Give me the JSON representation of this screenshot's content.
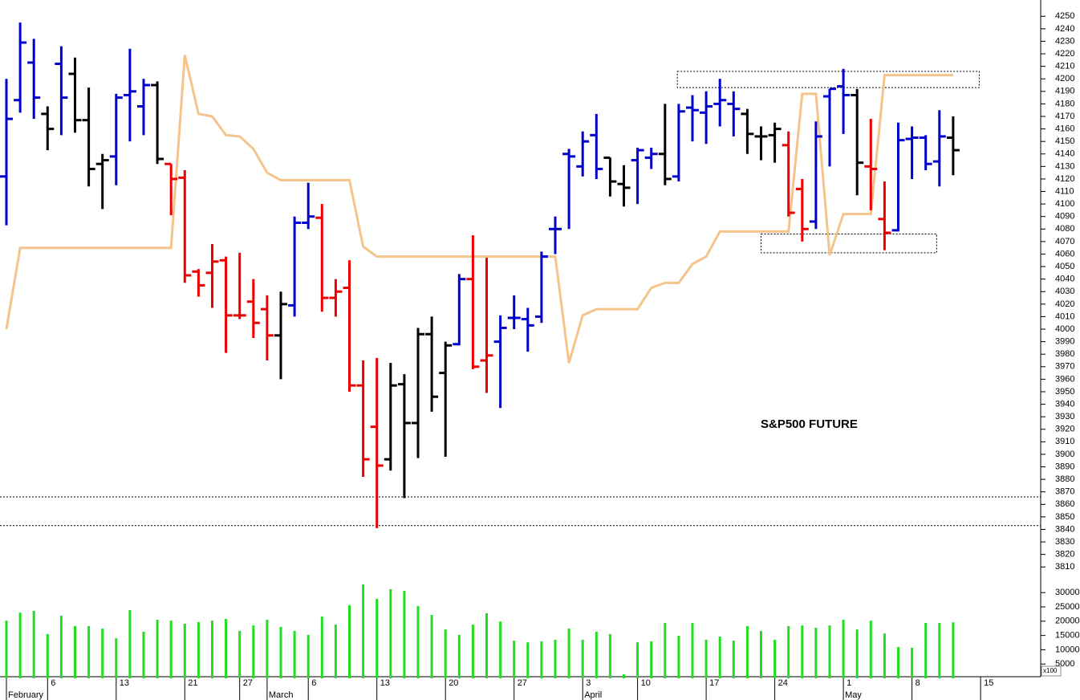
{
  "chart_data": {
    "type": "ohlc",
    "annotation": "S&P500 FUTURE",
    "categories": [
      null,
      null,
      null,
      "6",
      null,
      null,
      null,
      null,
      "13",
      null,
      null,
      null,
      null,
      "21",
      null,
      null,
      null,
      "27",
      null,
      null,
      null,
      null,
      "6",
      null,
      null,
      null,
      null,
      "13",
      null,
      null,
      null,
      null,
      "20",
      null,
      null,
      null,
      null,
      "27",
      null,
      null,
      null,
      null,
      "3",
      null,
      null,
      null,
      "10",
      null,
      null,
      null,
      null,
      "17",
      null,
      null,
      null,
      null,
      "24",
      null,
      null,
      null,
      null,
      "1",
      null,
      null,
      null,
      null,
      "8",
      null,
      null,
      null,
      null,
      "15"
    ],
    "months": [
      "February",
      null,
      null,
      null,
      null,
      null,
      null,
      null,
      null,
      null,
      null,
      null,
      null,
      null,
      null,
      null,
      null,
      null,
      null,
      "March",
      null,
      null,
      null,
      null,
      null,
      null,
      null,
      null,
      null,
      null,
      null,
      null,
      null,
      null,
      null,
      null,
      null,
      null,
      null,
      null,
      null,
      null,
      "April",
      null,
      null,
      null,
      null,
      null,
      null,
      null,
      null,
      null,
      null,
      null,
      null,
      null,
      null,
      null,
      null,
      null,
      null,
      "May",
      null,
      null,
      null,
      null,
      null,
      null,
      null,
      null,
      null,
      null
    ],
    "open": [
      4122,
      4183,
      4213,
      4172,
      4212,
      4204,
      4167,
      4132,
      4138,
      4187,
      4178,
      4195,
      4132,
      4121,
      4046,
      4045,
      4055,
      4011,
      4022,
      4016,
      3995,
      4019,
      4085,
      4089,
      4025,
      4033,
      3955,
      3922,
      3896,
      3956,
      3925,
      3996,
      3965,
      3988,
      4040,
      3975,
      3990,
      4009,
      4008,
      4010,
      4080,
      4140,
      4130,
      4155,
      4137,
      4116,
      4135,
      4137,
      4140,
      4122,
      4177,
      4173,
      4180,
      4180,
      4172,
      4154,
      4155,
      4147,
      4112,
      4086,
      4186,
      4194,
      4187,
      4130,
      4088,
      4079,
      4152,
      4153,
      4134,
      4153,
      null,
      null
    ],
    "high": [
      4200,
      4245,
      4232,
      4178,
      4226,
      4217,
      4193,
      4140,
      4188,
      4224,
      4200,
      4198,
      4132,
      4127,
      4048,
      4068,
      4058,
      4061,
      4040,
      4027,
      4030,
      4090,
      4117,
      4100,
      4040,
      4055,
      3975,
      3977,
      3973,
      3964,
      4001,
      4010,
      3990,
      4044,
      4075,
      4057,
      4011,
      4027,
      4017,
      4062,
      4090,
      4144,
      4158,
      4172,
      4137,
      4131,
      4145,
      4145,
      4180,
      4180,
      4187,
      4190,
      4200,
      4190,
      4176,
      4162,
      4165,
      4158,
      4120,
      4166,
      4192,
      4208,
      4192,
      4168,
      4118,
      4165,
      4162,
      4155,
      4175,
      4170,
      null,
      null
    ],
    "low": [
      4083,
      4173,
      4168,
      4143,
      4155,
      4157,
      4114,
      4096,
      4115,
      4150,
      4155,
      4132,
      4091,
      4037,
      4026,
      4017,
      3981,
      4008,
      3993,
      3975,
      3960,
      4010,
      4080,
      4014,
      4010,
      3950,
      3882,
      3841,
      3887,
      3865,
      3897,
      3934,
      3898,
      3987,
      3968,
      3949,
      3937,
      4000,
      3982,
      4005,
      4060,
      4080,
      4122,
      4120,
      4106,
      4098,
      4100,
      4128,
      4115,
      4118,
      4150,
      4148,
      4162,
      4154,
      4140,
      4135,
      4133,
      4090,
      4070,
      4080,
      4130,
      4156,
      4107,
      4095,
      4063,
      4078,
      4120,
      4127,
      4114,
      4123,
      null,
      null
    ],
    "close": [
      4168,
      4229,
      4185,
      4160,
      4185,
      4167,
      4128,
      4135,
      4185,
      4190,
      4195,
      4136,
      4120,
      4043,
      4035,
      4054,
      4011,
      4011,
      4005,
      3995,
      4020,
      4085,
      4090,
      4025,
      4030,
      3955,
      3896,
      3891,
      3955,
      3925,
      3996,
      3946,
      3987,
      4040,
      3970,
      3979,
      4001,
      4009,
      4003,
      4058,
      4080,
      4138,
      4150,
      4128,
      4118,
      4113,
      4143,
      4140,
      4120,
      4174,
      4175,
      4178,
      4183,
      4176,
      4156,
      4154,
      4160,
      4093,
      4080,
      4154,
      4192,
      4187,
      4133,
      4128,
      4077,
      4151,
      4153,
      4132,
      4154,
      4143,
      null,
      null
    ],
    "colors": [
      "#0000cc",
      "#0000cc",
      "#0000cc",
      "#000000",
      "#0000cc",
      "#000000",
      "#000000",
      "#000000",
      "#0000cc",
      "#0000cc",
      "#0000cc",
      "#000000",
      "#ee0000",
      "#ee0000",
      "#ee0000",
      "#ee0000",
      "#ee0000",
      "#ee0000",
      "#ee0000",
      "#ee0000",
      "#000000",
      "#0000cc",
      "#0000cc",
      "#ee0000",
      "#ee0000",
      "#ee0000",
      "#ee0000",
      "#ee0000",
      "#000000",
      "#000000",
      "#000000",
      "#000000",
      "#000000",
      "#0000cc",
      "#ee0000",
      "#ee0000",
      "#0000cc",
      "#0000cc",
      "#0000cc",
      "#0000cc",
      "#0000cc",
      "#0000cc",
      "#0000cc",
      "#0000cc",
      "#000000",
      "#000000",
      "#0000cc",
      "#0000cc",
      "#000000",
      "#0000cc",
      "#0000cc",
      "#0000cc",
      "#0000cc",
      "#0000cc",
      "#000000",
      "#000000",
      "#000000",
      "#ee0000",
      "#ee0000",
      "#0000cc",
      "#0000cc",
      "#0000cc",
      "#000000",
      "#ee0000",
      "#ee0000",
      "#0000cc",
      "#0000cc",
      "#0000cc",
      "#0000cc",
      "#000000",
      null,
      null
    ],
    "indicator": {
      "color": "#f5c48c",
      "values": [
        4000,
        4065,
        4065,
        4065,
        4065,
        4065,
        4065,
        4065,
        4065,
        4065,
        4065,
        4065,
        4065,
        4219,
        4172,
        4170,
        4155,
        4154,
        4144,
        4125,
        4119,
        4119,
        4119,
        4119,
        4119,
        4119,
        4066,
        4058,
        4058,
        4058,
        4058,
        4058,
        4058,
        4058,
        4058,
        4058,
        4058,
        4058,
        4058,
        4058,
        4058,
        3973,
        4011,
        4016,
        4016,
        4016,
        4016,
        4033,
        4037,
        4037,
        4052,
        4058,
        4078,
        4078,
        4078,
        4078,
        4078,
        4078,
        4188,
        4188,
        4059,
        4092,
        4092,
        4092,
        4203,
        4203,
        4203,
        4203,
        4203,
        4203,
        null,
        null
      ]
    },
    "levels": [
      3866,
      3843
    ],
    "boxes": [
      {
        "xlim": [
          48.9,
          70.9
        ],
        "ylim": [
          4193,
          4206
        ]
      },
      {
        "xlim": [
          55.0,
          67.8
        ],
        "ylim": [
          4061,
          4076
        ]
      }
    ],
    "ylim": [
      3804,
      4263
    ],
    "yticks": [
      3810,
      3820,
      3830,
      3840,
      3850,
      3860,
      3870,
      3880,
      3890,
      3900,
      3910,
      3920,
      3930,
      3940,
      3950,
      3960,
      3970,
      3980,
      3990,
      4000,
      4010,
      4020,
      4030,
      4040,
      4050,
      4060,
      4070,
      4080,
      4090,
      4100,
      4110,
      4120,
      4130,
      4140,
      4150,
      4160,
      4170,
      4180,
      4190,
      4200,
      4210,
      4220,
      4230,
      4240,
      4250
    ],
    "volume": {
      "color": "#22dd22",
      "unit_label": "x100",
      "values": [
        20200,
        23000,
        23600,
        15500,
        21900,
        18300,
        18300,
        17400,
        14000,
        23900,
        16300,
        20500,
        20200,
        19100,
        19700,
        20200,
        20800,
        16600,
        18500,
        20500,
        18000,
        16600,
        15200,
        21600,
        18800,
        25600,
        32900,
        27800,
        31200,
        30600,
        25300,
        22200,
        17100,
        15200,
        18800,
        22800,
        19900,
        13200,
        12600,
        12900,
        13500,
        17400,
        13500,
        16300,
        15500,
        1400,
        12600,
        12900,
        19400,
        14900,
        19400,
        13500,
        14600,
        13200,
        18300,
        16600,
        13500,
        18300,
        18500,
        17700,
        18500,
        20500,
        17100,
        20200,
        15700,
        11000,
        10700,
        19400,
        19400,
        19600,
        null,
        null
      ],
      "ylim": [
        0,
        34500
      ],
      "yticks": [
        5000,
        10000,
        15000,
        20000,
        25000,
        30000
      ]
    }
  }
}
